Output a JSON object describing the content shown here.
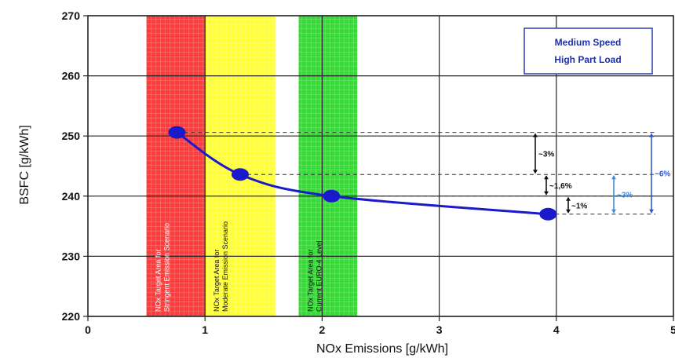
{
  "chart_data": {
    "type": "line",
    "title": "",
    "xlabel": "NOx Emissions [g/kWh]",
    "ylabel": "BSFC [g/kWh]",
    "xlim": [
      0,
      5
    ],
    "ylim": [
      220,
      270
    ],
    "x_ticks": [
      "0",
      "1",
      "2",
      "3",
      "4",
      "5"
    ],
    "y_ticks": [
      "220",
      "230",
      "240",
      "250",
      "260",
      "270"
    ],
    "grid": true,
    "legend_box": {
      "line1": "Medium Speed",
      "line2": "High Part Load",
      "position": "top-right"
    },
    "bands": [
      {
        "from": 0.5,
        "to": 1.0,
        "color": "#ff3b3b",
        "label": "NOx Target Area for Stringent Emission Scenario"
      },
      {
        "from": 1.0,
        "to": 1.6,
        "color": "#ffff33",
        "label": "NOx Target Area for Moderate Emission Scenario"
      },
      {
        "from": 1.8,
        "to": 2.3,
        "color": "#33dd33",
        "label": "NOx Target Area for Current EURO-4 Level"
      }
    ],
    "series": [
      {
        "name": "",
        "color": "#1a1acc",
        "points": [
          {
            "x": 0.76,
            "y": 250.6
          },
          {
            "x": 1.3,
            "y": 243.6
          },
          {
            "x": 2.08,
            "y": 240.0
          },
          {
            "x": 3.93,
            "y": 237.0
          }
        ]
      }
    ],
    "annotations": [
      {
        "label": "~3%",
        "y_from": 250.6,
        "y_to": 243.6,
        "color": "#111111"
      },
      {
        "label": "~1,6%",
        "y_from": 243.6,
        "y_to": 240.0,
        "color": "#111111"
      },
      {
        "label": "~1%",
        "y_from": 240.0,
        "y_to": 237.0,
        "color": "#111111"
      },
      {
        "label": "~3%",
        "y_from": 243.6,
        "y_to": 237.0,
        "color": "#3a8ee8"
      },
      {
        "label": "~6%",
        "y_from": 250.6,
        "y_to": 237.0,
        "color": "#2a56d6"
      }
    ]
  }
}
